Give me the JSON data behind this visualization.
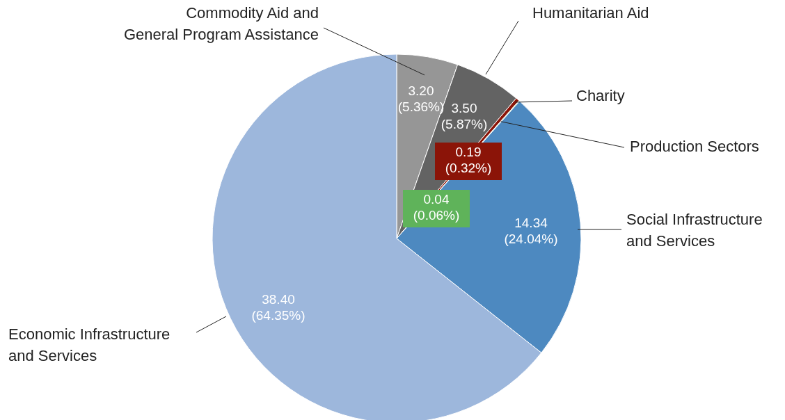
{
  "chart_data": {
    "type": "pie",
    "categories": [
      "Commodity Aid and General Program Assistance",
      "Humanitarian Aid",
      "Charity",
      "Production Sectors",
      "Social Infrastructure and Services",
      "Economic Infrastructure and Services"
    ],
    "values": [
      3.2,
      3.5,
      0.19,
      0.04,
      14.34,
      38.4
    ],
    "colors": [
      "#969696",
      "#636363",
      "#8b1408",
      "#5fb35a",
      "#4d89c0",
      "#9db7dc"
    ],
    "value_labels": [
      "3.20 (5.36%)",
      "3.50 (5.87%)",
      "0.19 (0.32%)",
      "0.04 (0.06%)",
      "14.34 (24.04%)",
      "38.40 (64.35%)"
    ]
  }
}
